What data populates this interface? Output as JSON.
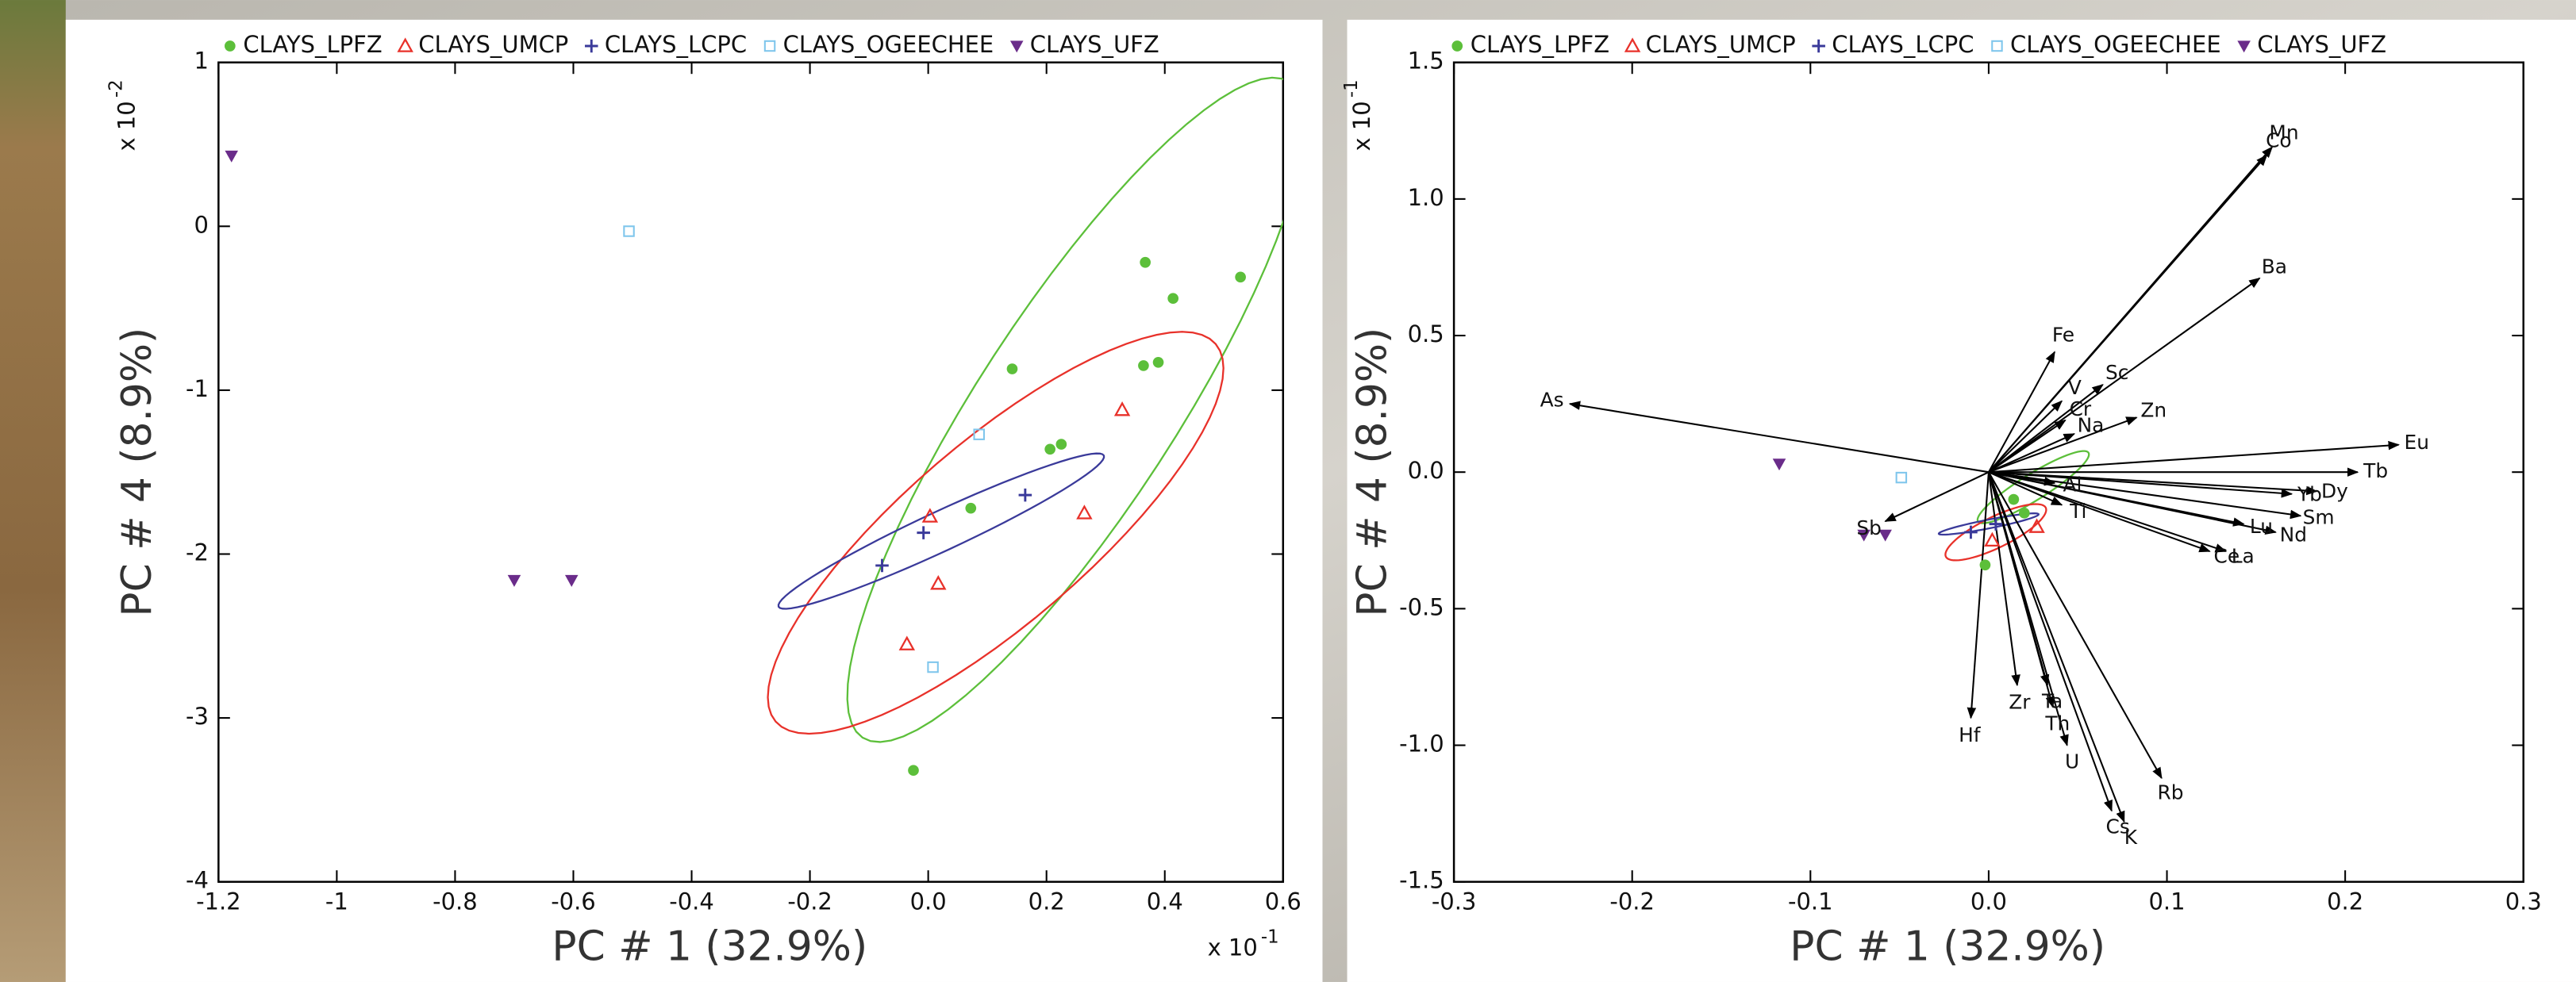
{
  "chart_data": [
    {
      "type": "scatter",
      "xlabel": "PC # 1 (32.9%)",
      "ylabel": "PC # 4 (8.9%)",
      "x_multiplier": {
        "base": "x 10",
        "exponent": "-1"
      },
      "y_multiplier": {
        "base": "x 10",
        "exponent": "-2"
      },
      "xlim": [
        -1.2,
        0.6
      ],
      "xticks": [
        -1.2,
        -1.0,
        -0.8,
        -0.6,
        -0.4,
        -0.2,
        {
          "value": 0,
          "label": "0.0"
        },
        0.2,
        0.4,
        0.6
      ],
      "ylim": [
        -4,
        1
      ],
      "yticks": [
        1,
        0,
        -1,
        -2,
        -3,
        -4
      ],
      "legend": "top",
      "series": [
        {
          "name": "CLAYS_LPFZ",
          "color": "#5cbf3a",
          "marker": "circle",
          "x": [
            0.367,
            0.528,
            0.414,
            0.142,
            0.389,
            0.364,
            0.225,
            0.206,
            0.072,
            -0.025
          ],
          "values": [
            -0.22,
            -0.31,
            -0.44,
            -0.87,
            -0.83,
            -0.85,
            -1.33,
            -1.36,
            -1.72,
            -3.32
          ]
        },
        {
          "name": "CLAYS_UMCP",
          "color": "#e8312a",
          "marker": "triangle",
          "x": [
            0.328,
            0.264,
            0.003,
            0.017,
            -0.036
          ],
          "values": [
            -1.12,
            -1.75,
            -1.77,
            -2.18,
            -2.55
          ]
        },
        {
          "name": "CLAYS_LCPC",
          "color": "#3a3a9a",
          "marker": "plus",
          "x": [
            0.164,
            -0.008,
            -0.078
          ],
          "values": [
            -1.64,
            -1.87,
            -2.07
          ]
        },
        {
          "name": "CLAYS_OGEECHEE",
          "color": "#7fc6ec",
          "marker": "square",
          "x": [
            -0.506,
            0.086,
            0.008
          ],
          "values": [
            -0.03,
            -1.27,
            -2.69
          ]
        },
        {
          "name": "CLAYS_UFZ",
          "color": "#6a2c8a",
          "marker": "triangle-down",
          "x": [
            -1.178,
            -0.7,
            -0.603
          ],
          "values": [
            0.43,
            -2.16,
            -2.16
          ]
        }
      ],
      "ellipses": [
        {
          "color": "#5cbf3a",
          "center": [
            0.25,
            -1.12
          ],
          "a": [
            0.361,
            2.0
          ],
          "b": [
            0.139,
            -0.33
          ]
        },
        {
          "color": "#e8312a",
          "center": [
            0.114,
            -1.87
          ],
          "a": [
            0.372,
            1.152
          ],
          "b": [
            0.1,
            -0.42
          ]
        },
        {
          "color": "#3a3a9a",
          "center": [
            0.022,
            -1.86
          ],
          "a": [
            0.275,
            0.461
          ],
          "b": [
            0.014,
            -0.11
          ]
        }
      ]
    },
    {
      "type": "biplot",
      "xlabel": "PC # 1 (32.9%)",
      "ylabel": "PC # 4 (8.9%)",
      "y_multiplier": {
        "base": "x 10",
        "exponent": "-1"
      },
      "xlim": [
        -0.3,
        0.3
      ],
      "xticks": [
        -0.3,
        -0.2,
        -0.1,
        {
          "value": 0,
          "label": "0.0"
        },
        0.1,
        0.2,
        0.3
      ],
      "ylim": [
        -1.5,
        1.5
      ],
      "yticks": [
        1.5,
        {
          "value": 1,
          "label": "1.0"
        },
        0.5,
        {
          "value": 0,
          "label": "0.0"
        },
        -0.5,
        {
          "value": -1,
          "label": "-1.0"
        },
        -1.5
      ],
      "legend": "top",
      "series": [
        {
          "name": "CLAYS_LPFZ",
          "color": "#5cbf3a",
          "marker": "circle",
          "x": [
            -0.002,
            0.014,
            0.02
          ],
          "values": [
            -0.34,
            -0.1,
            -0.15
          ]
        },
        {
          "name": "CLAYS_UMCP",
          "color": "#e8312a",
          "marker": "triangle",
          "x": [
            0.002,
            0.027
          ],
          "values": [
            -0.25,
            -0.2
          ]
        },
        {
          "name": "CLAYS_LCPC",
          "color": "#3a3a9a",
          "marker": "plus",
          "x": [
            -0.01,
            0.004
          ],
          "values": [
            -0.22,
            -0.19
          ]
        },
        {
          "name": "CLAYS_OGEECHEE",
          "color": "#7fc6ec",
          "marker": "square",
          "x": [
            -0.049
          ],
          "values": [
            -0.02
          ]
        },
        {
          "name": "CLAYS_UFZ",
          "color": "#6a2c8a",
          "marker": "triangle-down",
          "x": [
            -0.1175,
            -0.07,
            -0.058
          ],
          "values": [
            0.03,
            -0.23,
            -0.23
          ]
        }
      ],
      "ellipses": [
        {
          "color": "#5cbf3a",
          "center": [
            0.025,
            -0.055
          ],
          "a": [
            0.031,
            0.126
          ],
          "b": [
            0.004,
            -0.04
          ]
        },
        {
          "color": "#e8312a",
          "center": [
            0.004,
            -0.22
          ],
          "a": [
            0.028,
            0.09
          ],
          "b": [
            0.004,
            -0.05
          ]
        },
        {
          "color": "#3a3a9a",
          "center": [
            0.0,
            -0.19
          ],
          "a": [
            0.028,
            0.036
          ],
          "b": [
            0.001,
            -0.015
          ]
        }
      ],
      "vectors": [
        {
          "label": "Mn",
          "x": 0.159,
          "y": 1.19
        },
        {
          "label": "Co",
          "x": 0.156,
          "y": 1.16
        },
        {
          "label": "Ba",
          "x": 0.152,
          "y": 0.71
        },
        {
          "label": "Fe",
          "x": 0.037,
          "y": 0.44
        },
        {
          "label": "Sc",
          "x": 0.064,
          "y": 0.32
        },
        {
          "label": "V",
          "x": 0.041,
          "y": 0.26
        },
        {
          "label": "Cr",
          "x": 0.043,
          "y": 0.19
        },
        {
          "label": "Zn",
          "x": 0.083,
          "y": 0.2
        },
        {
          "label": "Na",
          "x": 0.048,
          "y": 0.14
        },
        {
          "label": "As",
          "x": -0.235,
          "y": 0.25
        },
        {
          "label": "Eu",
          "x": 0.23,
          "y": 0.1
        },
        {
          "label": "Tb",
          "x": 0.207,
          "y": 0.0
        },
        {
          "label": "Dy",
          "x": 0.184,
          "y": -0.07
        },
        {
          "label": "Yb",
          "x": 0.17,
          "y": -0.08
        },
        {
          "label": "Sm",
          "x": 0.175,
          "y": -0.16
        },
        {
          "label": "Lu",
          "x": 0.143,
          "y": -0.19
        },
        {
          "label": "Nd",
          "x": 0.161,
          "y": -0.22
        },
        {
          "label": "La",
          "x": 0.133,
          "y": -0.29
        },
        {
          "label": "Ce",
          "x": 0.124,
          "y": -0.29
        },
        {
          "label": "Al",
          "x": 0.037,
          "y": -0.04
        },
        {
          "label": "Ti",
          "x": 0.041,
          "y": -0.12
        },
        {
          "label": "Sb",
          "x": -0.058,
          "y": -0.18
        },
        {
          "label": "Hf",
          "x": -0.01,
          "y": -0.9
        },
        {
          "label": "Zr",
          "x": 0.016,
          "y": -0.78
        },
        {
          "label": "Ta",
          "x": 0.033,
          "y": -0.78
        },
        {
          "label": "Th",
          "x": 0.036,
          "y": -0.86
        },
        {
          "label": "U",
          "x": 0.044,
          "y": -1.0
        },
        {
          "label": "Rb",
          "x": 0.097,
          "y": -1.12
        },
        {
          "label": "Cs",
          "x": 0.069,
          "y": -1.24
        },
        {
          "label": "K",
          "x": 0.076,
          "y": -1.28
        }
      ]
    }
  ]
}
